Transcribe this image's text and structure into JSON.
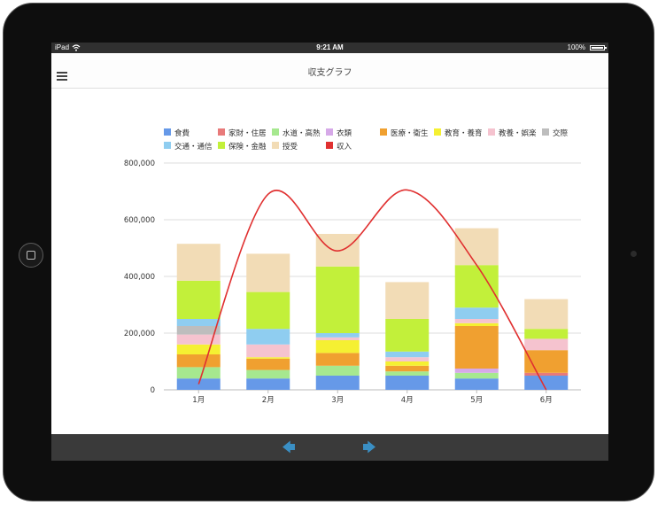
{
  "status_bar": {
    "device": "iPad",
    "time": "9:21 AM",
    "battery": "100%"
  },
  "nav": {
    "title": "収支グラフ"
  },
  "colors": {
    "食費": "#6699e8",
    "家財・住居": "#e87a7a",
    "水道・高熱": "#a6e88f",
    "衣類": "#d6a9e8",
    "医療・衛生": "#f0a030",
    "教育・養育": "#f5f032",
    "教養・娯楽": "#f5c3cf",
    "交際": "#bdbdbd",
    "交通・通信": "#8fcdf0",
    "保険・金融": "#c2f03a",
    "授受": "#f2dcb6",
    "収入": "#e03030"
  },
  "chart_data": {
    "type": "bar",
    "stacked": true,
    "categories": [
      "1月",
      "2月",
      "3月",
      "4月",
      "5月",
      "6月"
    ],
    "ylim": [
      0,
      800000
    ],
    "yticks": [
      "0",
      "200,000",
      "400,000",
      "600,000",
      "800,000"
    ],
    "grid": true,
    "legend_position": "top",
    "series": [
      {
        "name": "食費",
        "values": [
          40000,
          40000,
          50000,
          50000,
          40000,
          50000
        ]
      },
      {
        "name": "家財・住居",
        "values": [
          0,
          0,
          0,
          0,
          0,
          10000
        ]
      },
      {
        "name": "水道・高熱",
        "values": [
          40000,
          30000,
          35000,
          15000,
          20000,
          0
        ]
      },
      {
        "name": "衣類",
        "values": [
          0,
          0,
          0,
          0,
          15000,
          0
        ]
      },
      {
        "name": "医療・衛生",
        "values": [
          45000,
          40000,
          45000,
          20000,
          150000,
          80000
        ]
      },
      {
        "name": "教育・養育",
        "values": [
          35000,
          5000,
          45000,
          15000,
          10000,
          0
        ]
      },
      {
        "name": "教養・娯楽",
        "values": [
          35000,
          45000,
          10000,
          15000,
          15000,
          40000
        ]
      },
      {
        "name": "交際",
        "values": [
          30000,
          0,
          0,
          0,
          0,
          0
        ]
      },
      {
        "name": "交通・通信",
        "values": [
          25000,
          55000,
          15000,
          20000,
          40000,
          0
        ]
      },
      {
        "name": "保険・金融",
        "values": [
          135000,
          130000,
          235000,
          115000,
          150000,
          35000
        ]
      },
      {
        "name": "授受",
        "values": [
          130000,
          135000,
          115000,
          130000,
          130000,
          105000
        ]
      }
    ],
    "line_series": {
      "name": "収入",
      "type": "line",
      "smooth": true,
      "values": [
        20000,
        690000,
        490000,
        705000,
        440000,
        0
      ]
    }
  },
  "toolbar": {
    "back_icon": "left-arrow-icon",
    "forward_icon": "right-arrow-icon",
    "back_glyph": "🡄",
    "forward_glyph": "🡆"
  }
}
